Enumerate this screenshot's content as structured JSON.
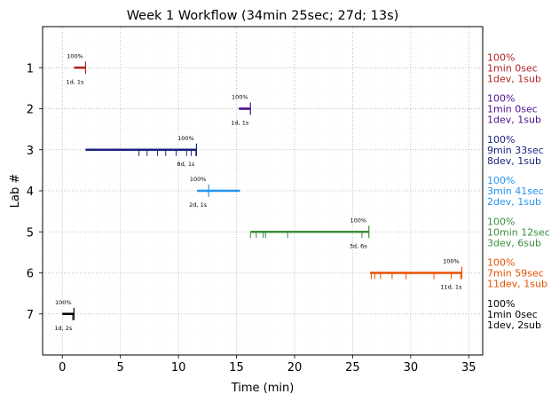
{
  "chart_data": {
    "type": "gantt",
    "title": "Week 1 Workflow (34min 25sec; 27d; 13s)",
    "xlabel": "Time (min)",
    "ylabel": "Lab #",
    "xlim": [
      -1.7,
      36.2
    ],
    "ylim": [
      0.0,
      8.0
    ],
    "x_ticks": [
      0,
      5,
      10,
      15,
      20,
      25,
      30,
      35
    ],
    "grid": true,
    "labs": [
      {
        "lab": "1",
        "color": "#b22222",
        "start": 1.0,
        "end": 2.0,
        "percent": "100%",
        "small": "1d, 1s",
        "ticks": [],
        "tall_ticks": [
          2.0
        ],
        "side": [
          "100%",
          "1min 0sec",
          "1dev, 1sub"
        ]
      },
      {
        "lab": "2",
        "color": "#4b0f8f",
        "start": 15.2,
        "end": 16.2,
        "percent": "100%",
        "small": "1d, 1s",
        "ticks": [],
        "tall_ticks": [
          16.2
        ],
        "side": [
          "100%",
          "1min 0sec",
          "1dev, 1sub"
        ]
      },
      {
        "lab": "3",
        "color": "#1a237e",
        "start": 2.0,
        "end": 11.55,
        "percent": "100%",
        "small": "8d, 1s",
        "ticks": [
          6.6,
          7.3,
          8.2,
          8.9,
          9.8,
          10.7,
          11.1,
          11.5
        ],
        "tall_ticks": [
          11.55
        ],
        "side": [
          "100%",
          "9min 33sec",
          "8dev, 1sub"
        ]
      },
      {
        "lab": "4",
        "color": "#2196f3",
        "start": 11.6,
        "end": 15.3,
        "percent": "100%",
        "small": "2d, 1s",
        "ticks": [],
        "tall_ticks": [
          12.6
        ],
        "side": [
          "100%",
          "3min 41sec",
          "2dev, 1sub"
        ]
      },
      {
        "lab": "5",
        "color": "#388e3c",
        "start": 16.2,
        "end": 26.4,
        "percent": "100%",
        "small": "3d, 6s",
        "ticks": [
          16.2,
          16.7,
          17.3,
          17.5,
          19.4,
          25.8
        ],
        "tall_ticks": [
          26.4
        ],
        "side": [
          "100%",
          "10min 12sec",
          "3dev, 6sub"
        ]
      },
      {
        "lab": "6",
        "color": "#e65100",
        "start": 26.5,
        "end": 34.4,
        "percent": "100%",
        "small": "11d, 1s",
        "ticks": [
          26.6,
          26.9,
          27.4,
          28.4,
          29.6,
          32.0,
          33.5,
          34.3
        ],
        "tall_ticks": [
          34.4
        ],
        "side": [
          "100%",
          "7min 59sec",
          "11dev, 1sub"
        ]
      },
      {
        "lab": "7",
        "color": "#000000",
        "start": 0.0,
        "end": 1.0,
        "percent": "100%",
        "small": "1d, 2s",
        "ticks": [
          0.9
        ],
        "tall_ticks": [
          1.0
        ],
        "side": [
          "100%",
          "1min 0sec",
          "1dev, 2sub"
        ]
      }
    ]
  }
}
